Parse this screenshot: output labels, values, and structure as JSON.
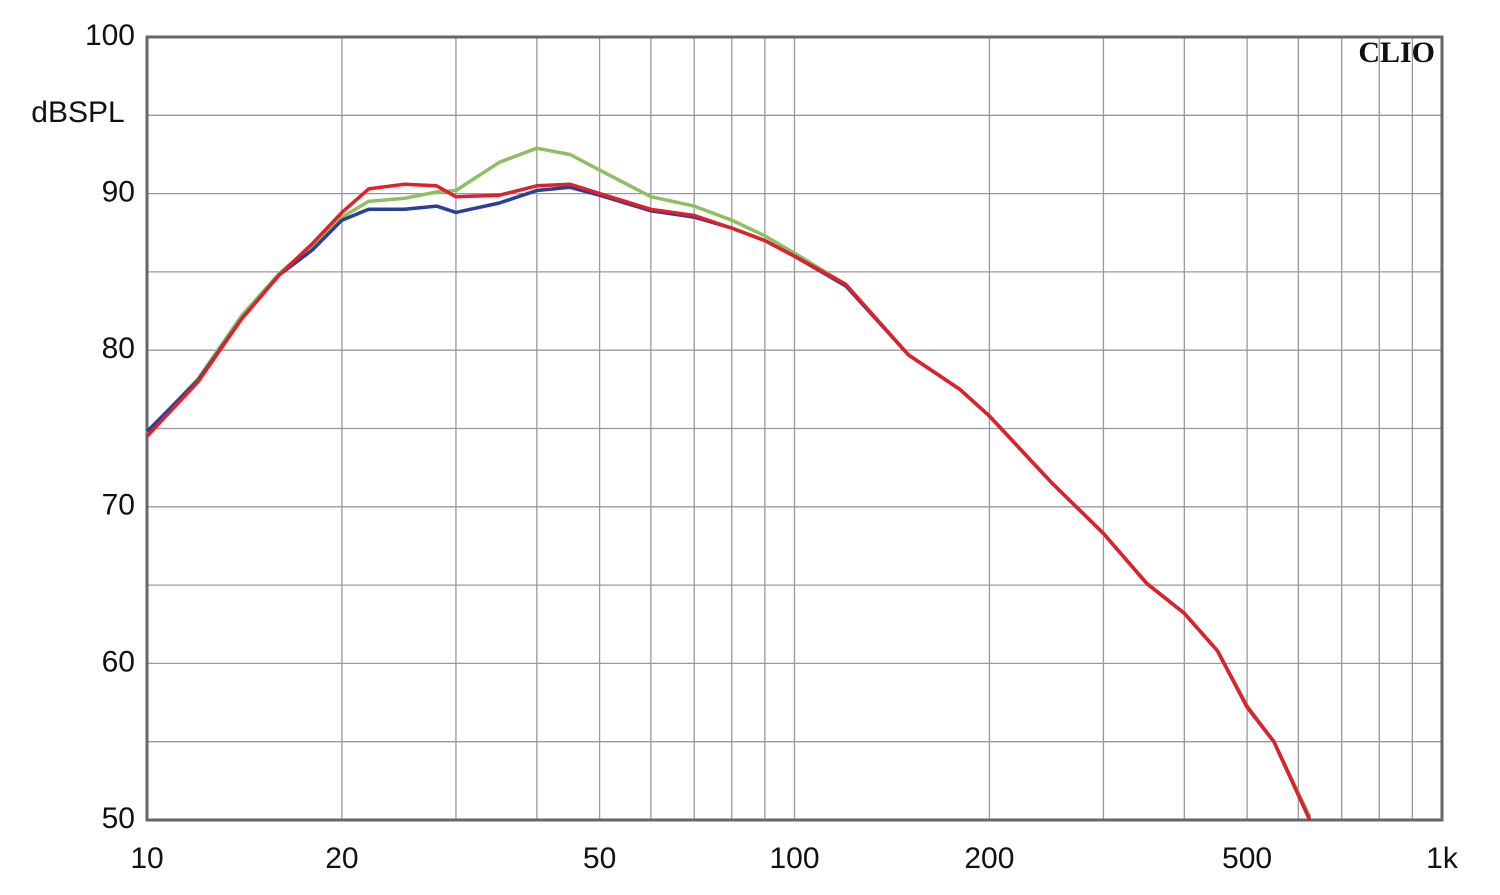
{
  "chart_data": {
    "type": "line",
    "log_x": true,
    "grid": true,
    "ylabel": "dBSPL",
    "annotation": "CLIO",
    "xlim": [
      10,
      1000
    ],
    "ylim": [
      50,
      100
    ],
    "xticks": [
      10,
      20,
      50,
      100,
      200,
      500,
      {
        "value": 1000,
        "label": "1k"
      }
    ],
    "xminor": [
      30,
      40,
      60,
      70,
      80,
      90,
      300,
      400,
      600,
      700,
      800,
      900
    ],
    "yticks": [
      50,
      60,
      70,
      80,
      90,
      100
    ],
    "yminor": [
      55,
      65,
      75,
      85,
      95
    ],
    "x": [
      10,
      12,
      14,
      16,
      18,
      20,
      22,
      25,
      28,
      30,
      35,
      40,
      45,
      50,
      60,
      70,
      80,
      90,
      100,
      120,
      150,
      180,
      200,
      250,
      300,
      350,
      400,
      450,
      500,
      550,
      625
    ],
    "series": [
      {
        "color": "#8cc063",
        "values": [
          74.7,
          78.2,
          82.2,
          84.9,
          86.7,
          88.5,
          89.5,
          89.7,
          90.1,
          90.2,
          92.0,
          92.9,
          92.5,
          91.5,
          89.8,
          89.2,
          88.3,
          87.3,
          86.2,
          84.2,
          79.7,
          77.5,
          75.8,
          71.5,
          68.3,
          65.1,
          63.2,
          60.8,
          57.3,
          55.0,
          50.2
        ]
      },
      {
        "color": "#2a3f9a",
        "values": [
          74.8,
          78.1,
          82.0,
          84.8,
          86.4,
          88.3,
          89.0,
          89.0,
          89.2,
          88.8,
          89.4,
          90.2,
          90.4,
          89.9,
          88.9,
          88.5,
          87.8,
          87.0,
          86.0,
          84.1,
          79.7,
          77.5,
          75.8,
          71.5,
          68.3,
          65.1,
          63.2,
          60.8,
          57.2,
          55.0,
          50.0
        ]
      },
      {
        "color": "#e0202a",
        "values": [
          74.5,
          78.0,
          82.0,
          84.8,
          86.8,
          88.8,
          90.3,
          90.6,
          90.5,
          89.8,
          89.9,
          90.5,
          90.6,
          90.0,
          89.0,
          88.6,
          87.8,
          87.0,
          86.0,
          84.2,
          79.7,
          77.5,
          75.8,
          71.5,
          68.3,
          65.1,
          63.2,
          60.8,
          57.2,
          55.0,
          50.0
        ]
      }
    ]
  }
}
